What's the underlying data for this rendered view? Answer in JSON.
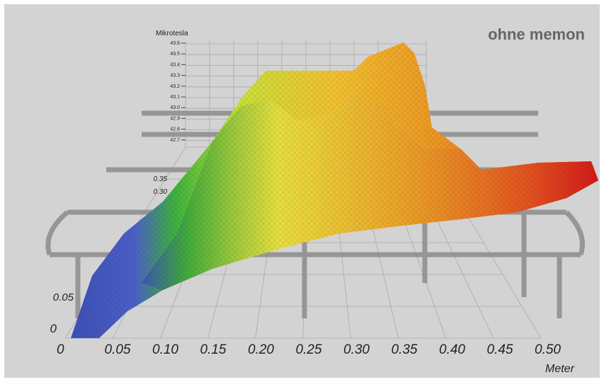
{
  "title": "ohne memon",
  "vertical_axis": {
    "label": "Mikrotesla",
    "ticks": [
      "43.6",
      "43.5",
      "43.4",
      "43.3",
      "43.2",
      "43.1",
      "43.0",
      "42.9",
      "42.8",
      "42.7"
    ]
  },
  "depth_axis": {
    "ticks": [
      "0.35",
      "0.30",
      "0.05",
      "0"
    ]
  },
  "horizontal_axis": {
    "label": "Meter",
    "ticks": [
      "0",
      "0.05",
      "0.10",
      "0.15",
      "0.20",
      "0.25",
      "0.30",
      "0.35",
      "0.40",
      "0.45",
      "0.50"
    ]
  }
}
